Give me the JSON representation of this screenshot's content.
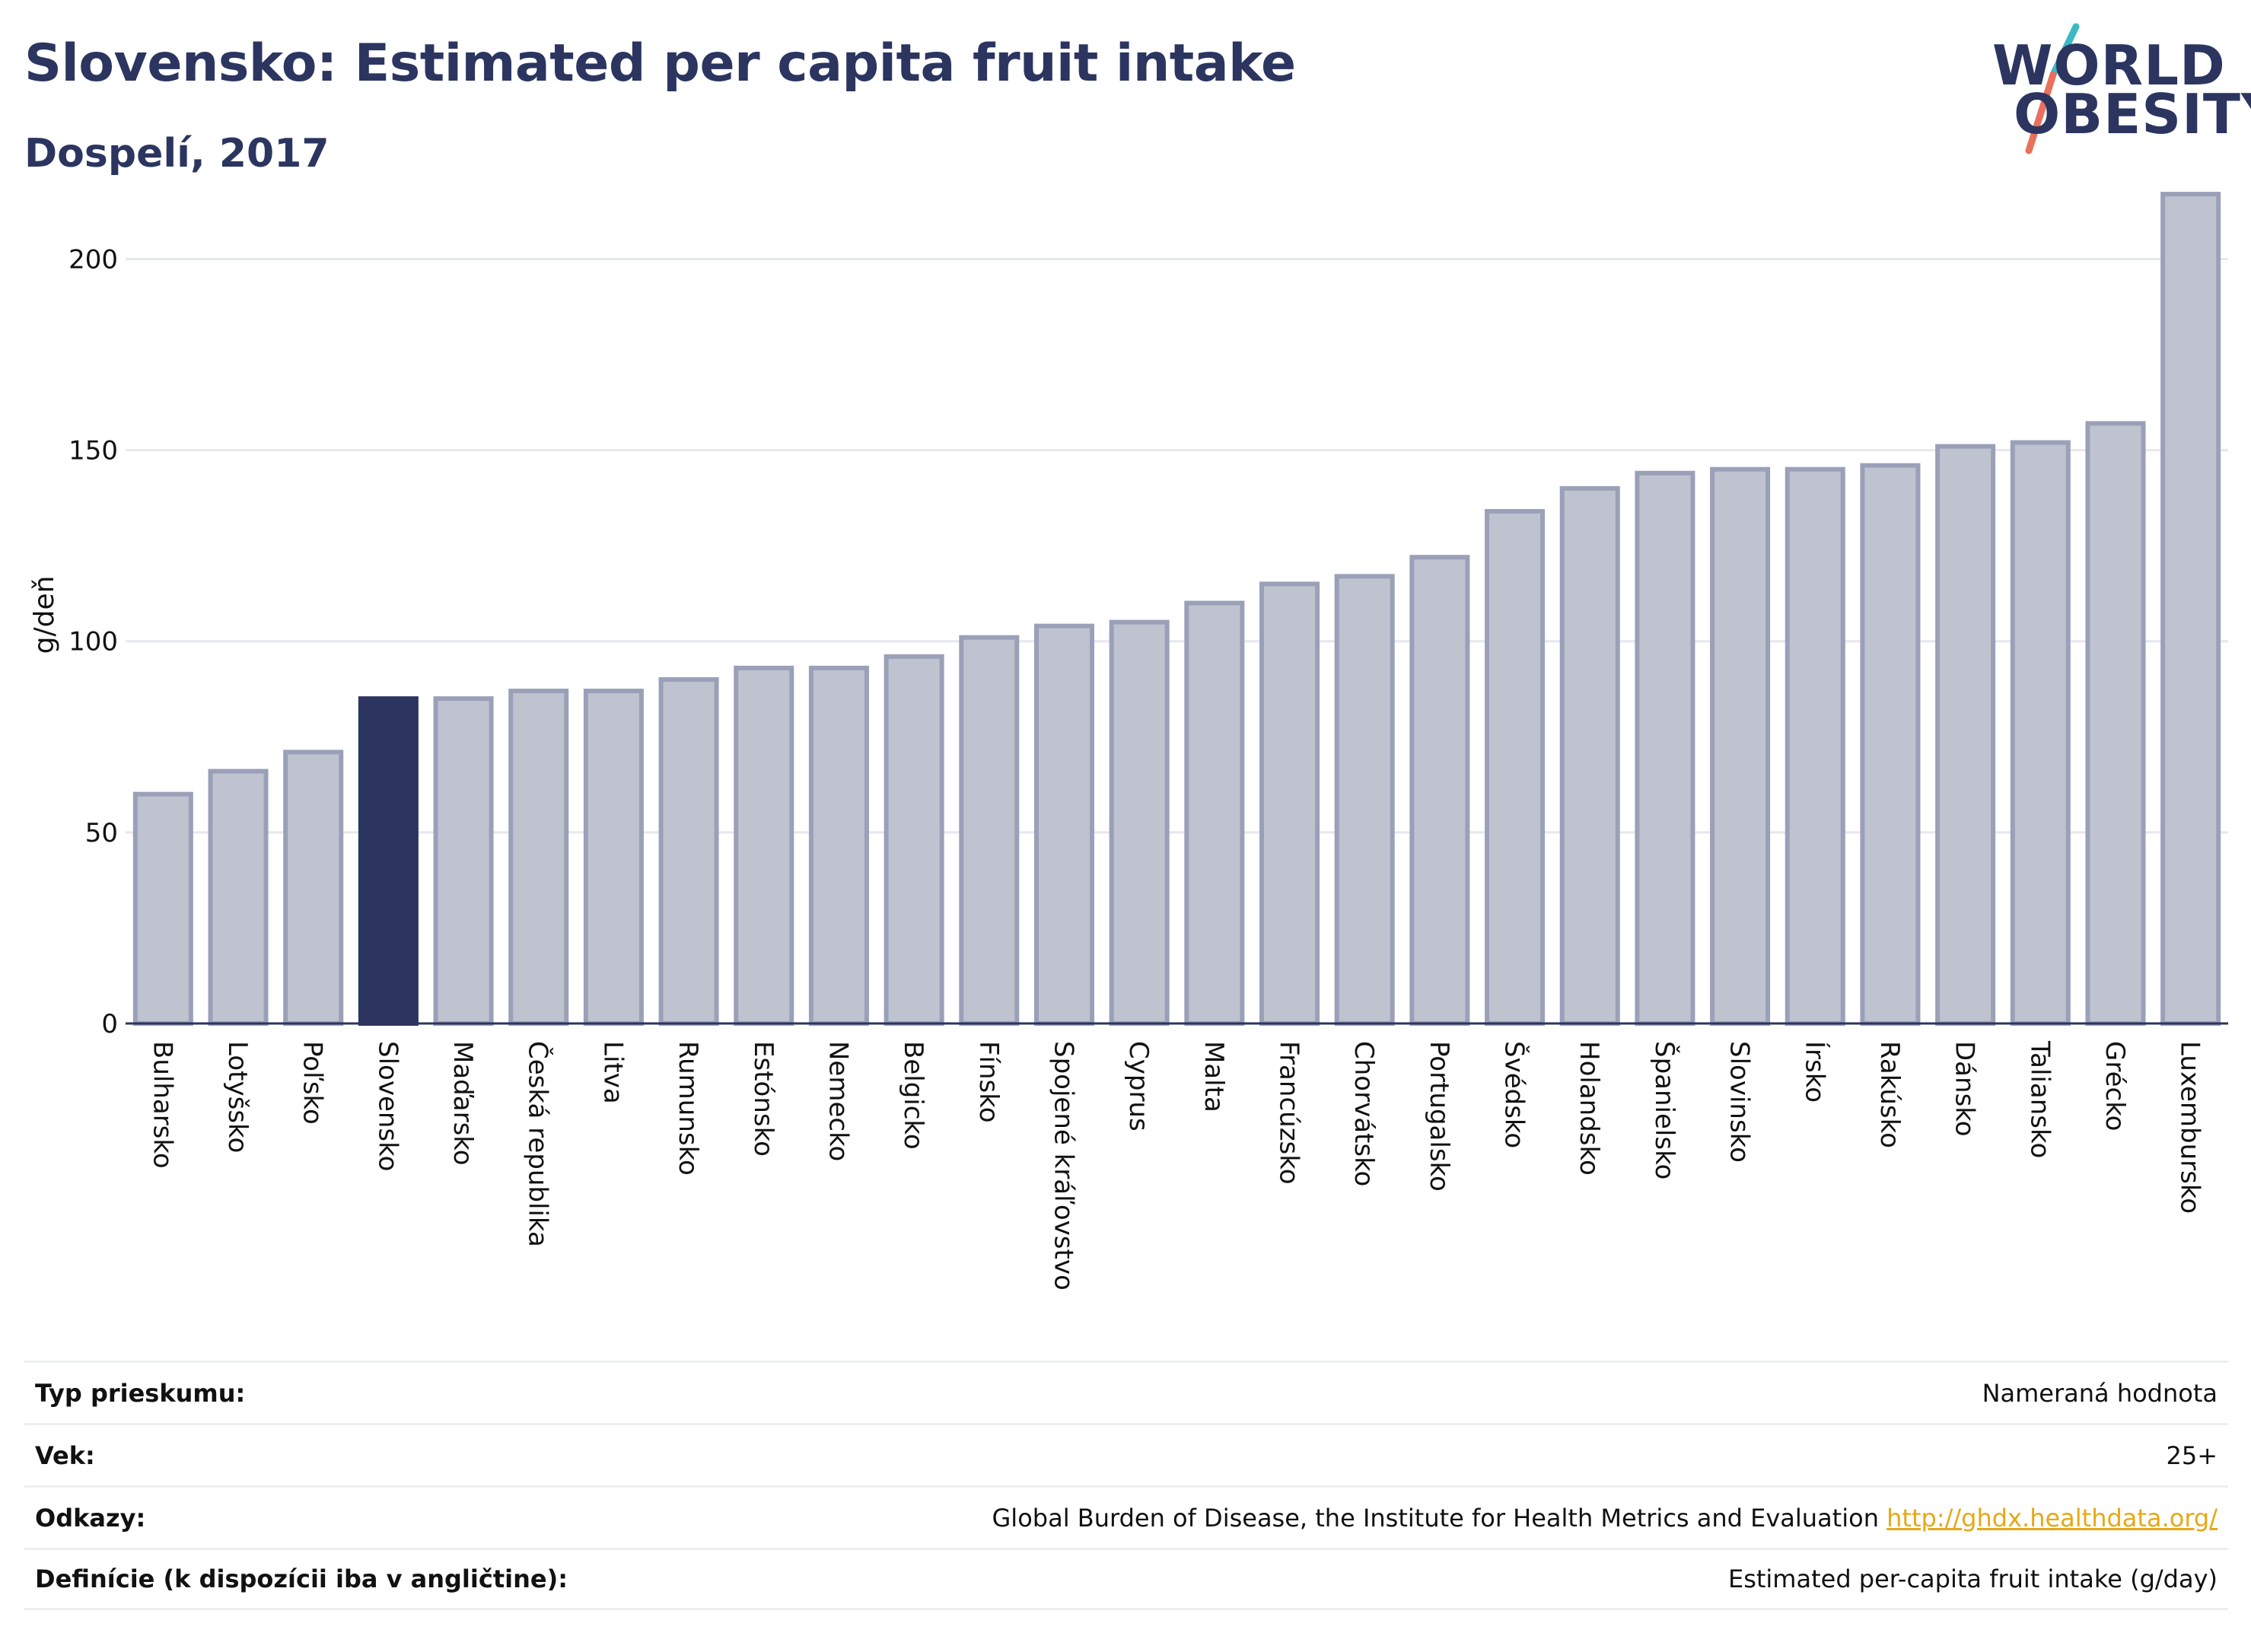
{
  "header": {
    "title": "Slovensko: Estimated per capita fruit intake",
    "subtitle": "Dospelí, 2017"
  },
  "logo": {
    "line1": "WORLD",
    "line2": "OBESITY"
  },
  "colors": {
    "highlight": "#2b3560",
    "bar_fill": "#bfc3d0",
    "bar_stroke": "#9aa0b8",
    "accent_teal": "#3bb9c4",
    "accent_red": "#e8705d",
    "link": "#e6a817"
  },
  "chart_data": {
    "type": "bar",
    "ylabel": "g/deň",
    "ylim": [
      0,
      220
    ],
    "yticks": [
      0,
      50,
      100,
      150,
      200
    ],
    "grid": true,
    "highlight_category": "Slovensko",
    "categories": [
      "Bulharsko",
      "Lotyšsko",
      "Poľsko",
      "Slovensko",
      "Maďarsko",
      "Česká republika",
      "Litva",
      "Rumunsko",
      "Estónsko",
      "Nemecko",
      "Belgicko",
      "Fínsko",
      "Spojené kráľovstvo",
      "Cyprus",
      "Malta",
      "Francúzsko",
      "Chorvátsko",
      "Portugalsko",
      "Švédsko",
      "Holandsko",
      "Španielsko",
      "Slovinsko",
      "Írsko",
      "Rakúsko",
      "Dánsko",
      "Taliansko",
      "Grécko",
      "Luxembursko"
    ],
    "values": [
      60,
      66,
      71,
      85,
      85,
      87,
      87,
      90,
      93,
      93,
      96,
      101,
      104,
      105,
      110,
      115,
      117,
      122,
      134,
      140,
      144,
      145,
      145,
      146,
      151,
      152,
      157,
      217
    ]
  },
  "info": {
    "rows": [
      {
        "label": "Typ prieskumu:",
        "value": "Nameraná hodnota"
      },
      {
        "label": "Vek:",
        "value": "25+"
      },
      {
        "label": "Odkazy:",
        "value": "Global Burden of Disease, the Institute for Health Metrics and Evaluation",
        "link": "http://ghdx.healthdata.org/"
      },
      {
        "label": "Definície (k dispozícii iba v angličtine):",
        "value": "Estimated per-capita fruit intake (g/day)"
      }
    ]
  }
}
